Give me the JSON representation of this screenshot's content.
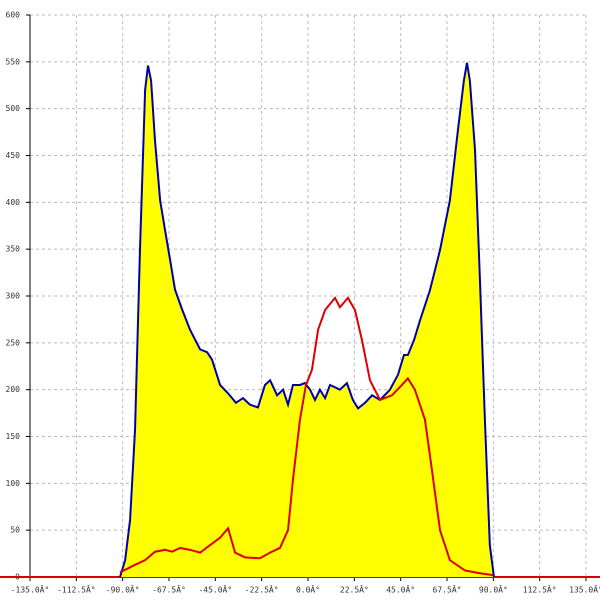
{
  "chart_data": {
    "type": "area",
    "xlim": [
      -135,
      135
    ],
    "ylim": [
      0,
      600
    ],
    "xticks": [
      {
        "value": -135,
        "label": "-135.0Â°"
      },
      {
        "value": -112.5,
        "label": "-112.5Â°"
      },
      {
        "value": -90,
        "label": "-90.0Â°"
      },
      {
        "value": -67.5,
        "label": "-67.5Â°"
      },
      {
        "value": -45,
        "label": "-45.0Â°"
      },
      {
        "value": -22.5,
        "label": "-22.5Â°"
      },
      {
        "value": 0,
        "label": "0.0Â°"
      },
      {
        "value": 22.5,
        "label": "22.5Â°"
      },
      {
        "value": 45,
        "label": "45.0Â°"
      },
      {
        "value": 67.5,
        "label": "67.5Â°"
      },
      {
        "value": 90,
        "label": "90.0Â°"
      },
      {
        "value": 112.5,
        "label": "112.5Â°"
      },
      {
        "value": 135,
        "label": "135.0Â°"
      }
    ],
    "yticks": [
      0,
      50,
      100,
      150,
      200,
      250,
      300,
      350,
      400,
      450,
      500,
      550,
      600
    ],
    "grid": true,
    "series": [
      {
        "color": "#0000aa",
        "fill": "#ffff00",
        "x": [
          -91.3,
          -88.8,
          -86.4,
          -84,
          -81.6,
          -79.1,
          -77.7,
          -76.2,
          -74.3,
          -71.8,
          -69.4,
          -67,
          -64.6,
          -61.2,
          -57.3,
          -52.4,
          -49,
          -46.6,
          -42.7,
          -38.8,
          -35,
          -31.6,
          -28.2,
          -24.3,
          -20.9,
          -18.4,
          -15,
          -12.1,
          -9.7,
          -7.3,
          -3.9,
          -1.5,
          1,
          3.4,
          5.8,
          8.3,
          10.7,
          15.5,
          18.9,
          21.8,
          24.3,
          27.7,
          31.1,
          35,
          39.8,
          43.7,
          46.6,
          48.5,
          51.5,
          54.4,
          59.2,
          64.1,
          68.9,
          72.8,
          75.7,
          77.2,
          78.6,
          81.1,
          83.5,
          85.9,
          88.3,
          90.3
        ],
        "values": [
          0,
          18,
          61,
          157,
          349,
          520,
          546,
          530,
          466,
          402,
          370,
          339,
          307,
          286,
          264,
          243,
          240,
          232,
          205,
          196,
          186,
          191,
          184,
          181,
          205,
          210,
          194,
          200,
          184,
          205,
          205,
          207,
          200,
          189,
          200,
          191,
          205,
          200,
          207,
          189,
          180,
          186,
          194,
          189,
          200,
          216,
          237,
          237,
          253,
          274,
          306,
          349,
          402,
          477,
          530,
          549,
          530,
          456,
          317,
          168,
          34,
          0
        ]
      },
      {
        "color": "#dd0000",
        "x": [
          -91.3,
          -84,
          -79.1,
          -74.3,
          -69.4,
          -66,
          -62.1,
          -57.3,
          -52.4,
          -47.6,
          -42.7,
          -38.8,
          -35.4,
          -30.6,
          -23.3,
          -18.4,
          -13.6,
          -9.7,
          -7.3,
          -3.9,
          -1,
          1.9,
          4.9,
          8.3,
          13.1,
          15.5,
          19.4,
          22.8,
          26.2,
          30.1,
          35,
          40.8,
          45.6,
          48.5,
          51.9,
          56.8,
          60.2,
          64.1,
          68.9,
          76.2,
          83.5,
          89.8
        ],
        "values": [
          5,
          13,
          18,
          27,
          29,
          27,
          31,
          29,
          26,
          34,
          42,
          52,
          26,
          21,
          20,
          26,
          31,
          50,
          104,
          168,
          205,
          221,
          264,
          285,
          298,
          288,
          298,
          285,
          253,
          210,
          189,
          194,
          205,
          212,
          200,
          168,
          114,
          50,
          18,
          7,
          4,
          2
        ]
      }
    ]
  }
}
